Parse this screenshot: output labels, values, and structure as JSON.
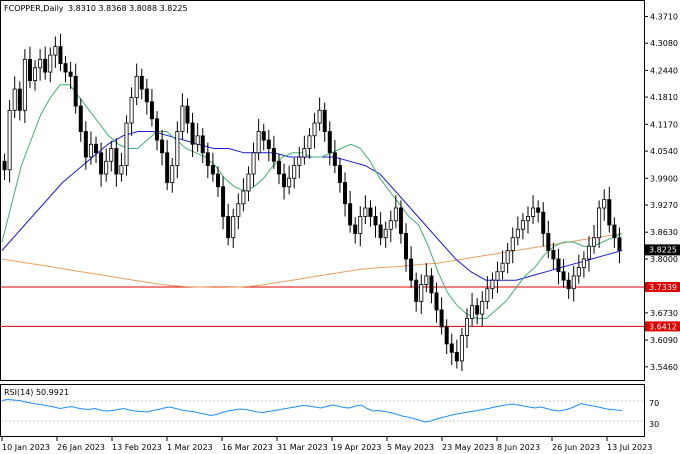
{
  "header": {
    "symbol_label": "FCOPPER,Daily",
    "ohlc_text": "3.8310 3.8368 3.8088 3.8225"
  },
  "rsi": {
    "label": "RSI(14) 50.9921",
    "levels": [
      "70",
      "30"
    ],
    "color": "#1e90ff"
  },
  "price_tag": {
    "value": "3.8225",
    "bg": "#000000"
  },
  "hlines": [
    {
      "value": "3.7339",
      "color": "#e00000"
    },
    {
      "value": "3.6412",
      "color": "#e00000"
    }
  ],
  "chart_data": {
    "type": "candlestick",
    "ylim": [
      3.515,
      4.405
    ],
    "y_ticks": [
      "4.3710",
      "4.3080",
      "4.2440",
      "4.1810",
      "4.1170",
      "4.0540",
      "3.9900",
      "3.9270",
      "3.8630",
      "3.8000",
      "3.6730",
      "3.6090",
      "3.5460"
    ],
    "x_ticks": [
      "10 Jan 2023",
      "26 Jan 2023",
      "13 Feb 2023",
      "1 Mar 2023",
      "16 Mar 2023",
      "31 Mar 2023",
      "19 Apr 2023",
      "5 May 2023",
      "23 May 2023",
      "8 Jun 2023",
      "26 Jun 2023",
      "13 Jul 2023"
    ],
    "closes": [
      4.01,
      4.15,
      4.2,
      4.15,
      4.27,
      4.22,
      4.25,
      4.27,
      4.24,
      4.28,
      4.3,
      4.26,
      4.24,
      4.23,
      4.16,
      4.1,
      4.04,
      4.07,
      4.05,
      4.0,
      4.03,
      4.06,
      4.0,
      4.02,
      4.12,
      4.18,
      4.23,
      4.2,
      4.17,
      4.13,
      4.08,
      4.05,
      3.98,
      4.02,
      4.1,
      4.16,
      4.12,
      4.07,
      4.09,
      4.05,
      4.02,
      4.0,
      3.97,
      3.9,
      3.85,
      3.9,
      3.93,
      3.96,
      4.0,
      4.05,
      4.1,
      4.08,
      4.06,
      4.03,
      4.0,
      3.97,
      3.99,
      4.02,
      4.04,
      4.06,
      4.09,
      4.12,
      4.15,
      4.1,
      4.05,
      4.02,
      3.98,
      3.93,
      3.88,
      3.86,
      3.9,
      3.92,
      3.9,
      3.88,
      3.85,
      3.87,
      3.89,
      3.92,
      3.86,
      3.8,
      3.75,
      3.7,
      3.74,
      3.76,
      3.72,
      3.68,
      3.64,
      3.6,
      3.58,
      3.56,
      3.62,
      3.66,
      3.69,
      3.67,
      3.7,
      3.73,
      3.75,
      3.77,
      3.79,
      3.82,
      3.85,
      3.87,
      3.89,
      3.9,
      3.92,
      3.91,
      3.86,
      3.82,
      3.8,
      3.77,
      3.75,
      3.73,
      3.76,
      3.78,
      3.8,
      3.83,
      3.85,
      3.92,
      3.94,
      3.88,
      3.85,
      3.82
    ],
    "ma_fast": {
      "color": "#3cb371",
      "values": [
        3.84,
        3.93,
        4.02,
        4.08,
        4.14,
        4.18,
        4.21,
        4.21,
        4.18,
        4.15,
        4.12,
        4.09,
        4.07,
        4.06,
        4.06,
        4.08,
        4.1,
        4.1,
        4.08,
        4.06,
        4.05,
        4.04,
        4.02,
        3.99,
        3.97,
        3.96,
        3.97,
        3.99,
        4.02,
        4.04,
        4.05,
        4.05,
        4.04,
        4.04,
        4.05,
        4.06,
        4.07,
        4.06,
        4.03,
        3.99,
        3.96,
        3.93,
        3.9,
        3.88,
        3.83,
        3.77,
        3.72,
        3.69,
        3.67,
        3.66,
        3.66,
        3.68,
        3.7,
        3.73,
        3.76,
        3.78,
        3.81,
        3.83,
        3.84,
        3.84,
        3.83,
        3.83,
        3.84,
        3.85,
        3.86
      ]
    },
    "ma_mid": {
      "color": "#1c1ce0",
      "values": [
        3.82,
        3.86,
        3.9,
        3.94,
        3.98,
        4.01,
        4.04,
        4.07,
        4.09,
        4.1,
        4.1,
        4.09,
        4.08,
        4.07,
        4.06,
        4.06,
        4.05,
        4.05,
        4.05,
        4.04,
        4.04,
        4.04,
        4.04,
        4.03,
        4.02,
        4.0,
        3.96,
        3.92,
        3.88,
        3.84,
        3.8,
        3.77,
        3.75,
        3.75,
        3.75,
        3.76,
        3.77,
        3.78,
        3.79,
        3.8,
        3.81,
        3.82
      ]
    },
    "ma_slow": {
      "color": "#e8a060",
      "values": [
        3.8,
        3.795,
        3.79,
        3.785,
        3.78,
        3.775,
        3.77,
        3.765,
        3.76,
        3.755,
        3.75,
        3.745,
        3.74,
        3.737,
        3.735,
        3.734,
        3.733,
        3.733,
        3.734,
        3.736,
        3.74,
        3.745,
        3.75,
        3.755,
        3.76,
        3.765,
        3.77,
        3.775,
        3.778,
        3.78,
        3.782,
        3.785,
        3.788,
        3.79,
        3.795,
        3.8,
        3.805,
        3.81,
        3.815,
        3.82,
        3.825,
        3.83,
        3.835,
        3.84,
        3.845,
        3.85,
        3.855,
        3.86
      ]
    },
    "rsi_values": [
      71,
      73,
      72,
      71,
      68,
      66,
      64,
      62,
      60,
      58,
      55,
      57,
      59,
      56,
      54,
      53,
      55,
      52,
      50,
      51,
      53,
      55,
      52,
      50,
      49,
      48,
      51,
      53,
      56,
      58,
      55,
      52,
      50,
      49,
      46,
      44,
      41,
      43,
      47,
      50,
      52,
      54,
      53,
      51,
      48,
      47,
      49,
      51,
      53,
      55,
      57,
      59,
      61,
      60,
      58,
      56,
      59,
      62,
      60,
      57,
      56,
      60,
      62,
      55,
      50,
      51,
      49,
      47,
      44,
      40,
      38,
      35,
      32,
      28,
      30,
      34,
      37,
      40,
      43,
      45,
      47,
      49,
      51,
      53,
      55,
      58,
      60,
      62,
      64,
      62,
      60,
      58,
      56,
      58,
      55,
      52,
      50,
      52,
      55,
      60,
      65,
      62,
      60,
      58,
      55,
      53,
      52,
      51
    ]
  }
}
